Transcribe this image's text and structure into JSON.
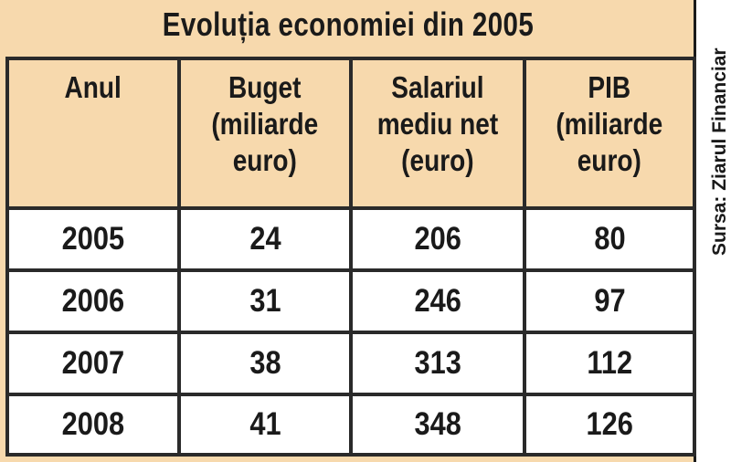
{
  "chart_data": {
    "type": "table",
    "title": "Evoluția economiei din 2005",
    "columns": [
      "Anul",
      "Buget\n(miliarde\neuro)",
      "Salariul\nmediu net\n(euro)",
      "PIB\n(miliarde\neuro)"
    ],
    "rows": [
      [
        "2005",
        "24",
        "206",
        "80"
      ],
      [
        "2006",
        "31",
        "246",
        "97"
      ],
      [
        "2007",
        "38",
        "313",
        "112"
      ],
      [
        "2008",
        "41",
        "348",
        "126"
      ]
    ],
    "source": "Sursa: Ziarul Financiar"
  },
  "colors": {
    "header_bg": "#f7d9ad",
    "cell_bg": "#ffffff",
    "border": "#2a2a2a",
    "text": "#1a1a1a"
  }
}
